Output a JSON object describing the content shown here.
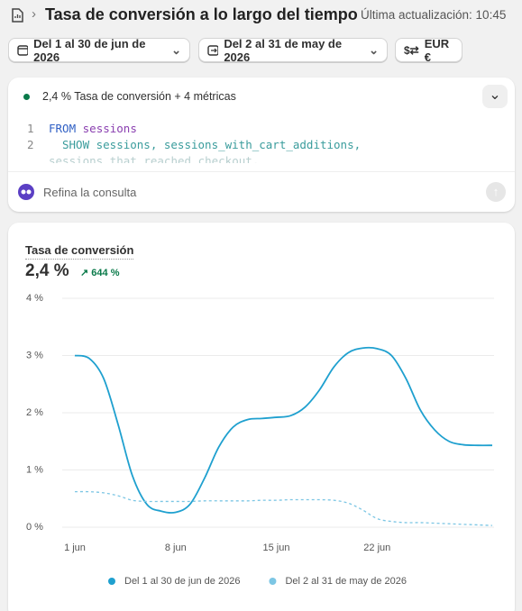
{
  "header": {
    "title": "Tasa de conversión a lo largo del tiempo",
    "updated": "Última actualización: 10:45"
  },
  "filters": [
    "Del 1 al 30 de jun de 2026",
    "Del 2 al 31 de may de 2026",
    "EUR €"
  ],
  "query": {
    "summary": "2,4 % Tasa de conversión + 4 métricas",
    "line_numbers": [
      "1",
      "2"
    ],
    "code": [
      [
        "FROM",
        "sessions"
      ],
      [
        "SHOW sessions, sessions_with_cart_additions,"
      ],
      [
        "sessions_that_reached_checkout,"
      ]
    ],
    "prompt": "Refina la consulta"
  },
  "metric": {
    "title": "Tasa de conversión",
    "value": "2,4 %",
    "change": "644 %"
  },
  "chart_data": {
    "type": "line",
    "categories": [
      "1 jun",
      null,
      null,
      null,
      null,
      null,
      null,
      "8 jun",
      null,
      null,
      null,
      null,
      null,
      null,
      "15 jun",
      null,
      null,
      null,
      null,
      null,
      null,
      "22 jun",
      null,
      null,
      null,
      null,
      null,
      null,
      null,
      null
    ],
    "series": [
      {
        "name": "Del 1 al 30 de jun de 2026",
        "color": "#1fa0cf",
        "dashed": false,
        "values": [
          3.0,
          2.95,
          2.6,
          1.8,
          0.9,
          0.4,
          0.28,
          0.26,
          0.4,
          0.85,
          1.4,
          1.75,
          1.88,
          1.9,
          1.92,
          1.95,
          2.1,
          2.4,
          2.8,
          3.05,
          3.13,
          3.12,
          3.0,
          2.6,
          2.05,
          1.7,
          1.5,
          1.44,
          1.43,
          1.43
        ]
      },
      {
        "name": "Del 2 al 31 de may de 2026",
        "color": "#7cc6e4",
        "dashed": true,
        "values": [
          0.62,
          0.62,
          0.6,
          0.55,
          0.47,
          0.45,
          0.45,
          0.45,
          0.45,
          0.46,
          0.46,
          0.46,
          0.46,
          0.47,
          0.47,
          0.48,
          0.48,
          0.48,
          0.47,
          0.42,
          0.3,
          0.15,
          0.1,
          0.08,
          0.08,
          0.07,
          0.06,
          0.05,
          0.04,
          0.03
        ]
      }
    ],
    "ylim": [
      0,
      4
    ],
    "yticks": [
      {
        "value": 0,
        "label": "0 %"
      },
      {
        "value": 1,
        "label": "1 %"
      },
      {
        "value": 2,
        "label": "2 %"
      },
      {
        "value": 3,
        "label": "3 %"
      },
      {
        "value": 4,
        "label": "4 %"
      }
    ],
    "grid": true
  }
}
